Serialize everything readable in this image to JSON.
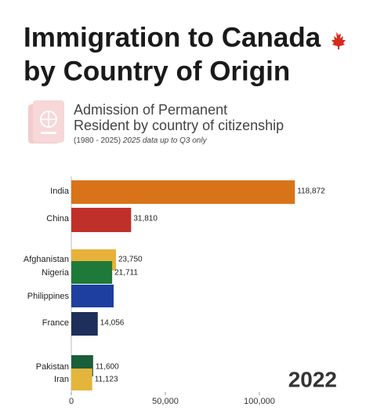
{
  "chart_data": {
    "type": "bar",
    "orientation": "horizontal",
    "title": "Immigration to Canada",
    "title_line2": "by Country of Origin",
    "subtitle": "Admission of Permanent",
    "subtitle_line2": "Resident by country of citizenship",
    "note": "(1980 - 2025)",
    "note_italic": "2025 data up to Q3 only",
    "annotation": "2022",
    "categories": [
      "India",
      "China",
      "Afghanistan",
      "Nigeria",
      "Philippines",
      "France",
      "Pakistan",
      "Iran"
    ],
    "values": [
      118872,
      31810,
      23750,
      21711,
      22500,
      14056,
      11600,
      11123
    ],
    "value_labels": [
      "118,872",
      "31,810",
      "23,750",
      "21,711",
      null,
      "14,056",
      "11,600",
      "11,123"
    ],
    "colors": [
      "#d9731a",
      "#c0302a",
      "#e8b23a",
      "#1f7a3a",
      "#1f3fa0",
      "#1d2f5a",
      "#1a5e3a",
      "#e3b53c"
    ],
    "xlim": [
      0,
      130000
    ],
    "xticks": [
      0,
      {
        "value": 50000,
        "label": "50,000"
      },
      {
        "value": 100000,
        "label": "100,000"
      }
    ]
  }
}
